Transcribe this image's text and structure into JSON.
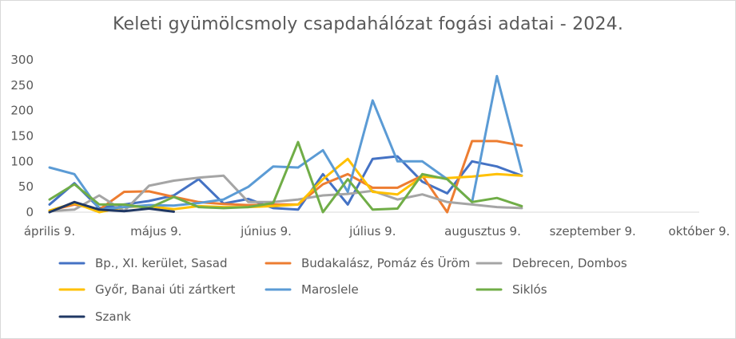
{
  "chart_data": {
    "type": "line",
    "title": "Keleti gyümölcsmoly csapdahálózat fogási adatai - 2024.",
    "ylim": [
      0,
      300
    ],
    "yticks": [
      0,
      50,
      100,
      150,
      200,
      250,
      300
    ],
    "xlim": [
      "2024-04-09",
      "2024-10-09"
    ],
    "xticks": [
      {
        "date": "2024-04-09",
        "label": "április 9."
      },
      {
        "date": "2024-05-09",
        "label": "május 9."
      },
      {
        "date": "2024-06-09",
        "label": "június 9."
      },
      {
        "date": "2024-07-09",
        "label": "július 9."
      },
      {
        "date": "2024-08-09",
        "label": "augusztus 9."
      },
      {
        "date": "2024-09-09",
        "label": "szeptember 9."
      },
      {
        "date": "2024-10-09",
        "label": "október 9."
      }
    ],
    "grid": false,
    "legend_position": "bottom",
    "series": [
      {
        "name": "Bp., XI. kerület, Sasad",
        "color": "#4472C4",
        "x": [
          "2024-04-09",
          "2024-04-16",
          "2024-04-23",
          "2024-04-30",
          "2024-05-07",
          "2024-05-14",
          "2024-05-21",
          "2024-05-28",
          "2024-06-04",
          "2024-06-11",
          "2024-06-18",
          "2024-06-25",
          "2024-07-02",
          "2024-07-09",
          "2024-07-16",
          "2024-07-23",
          "2024-07-30",
          "2024-08-06",
          "2024-08-13",
          "2024-08-20"
        ],
        "y": [
          15,
          57,
          8,
          15,
          22,
          33,
          65,
          17,
          26,
          8,
          5,
          75,
          15,
          105,
          110,
          60,
          37,
          100,
          90,
          72
        ]
      },
      {
        "name": "Budakalász, Pomáz és Üröm",
        "color": "#ED7D31",
        "x": [
          "2024-04-09",
          "2024-04-16",
          "2024-04-23",
          "2024-04-30",
          "2024-05-07",
          "2024-05-14",
          "2024-05-21",
          "2024-05-28",
          "2024-06-04",
          "2024-06-11",
          "2024-06-18",
          "2024-06-25",
          "2024-07-02",
          "2024-07-09",
          "2024-07-16",
          "2024-07-23",
          "2024-07-30",
          "2024-08-06",
          "2024-08-13",
          "2024-08-20"
        ],
        "y": [
          3,
          15,
          5,
          40,
          41,
          30,
          20,
          16,
          14,
          15,
          15,
          55,
          75,
          48,
          48,
          72,
          0,
          140,
          140,
          131
        ]
      },
      {
        "name": "Debrecen, Dombos",
        "color": "#A5A5A5",
        "x": [
          "2024-04-09",
          "2024-04-16",
          "2024-04-23",
          "2024-04-30",
          "2024-05-07",
          "2024-05-14",
          "2024-05-21",
          "2024-05-28",
          "2024-06-04",
          "2024-06-11",
          "2024-06-18",
          "2024-06-25",
          "2024-07-02",
          "2024-07-09",
          "2024-07-16",
          "2024-07-23",
          "2024-07-30",
          "2024-08-06",
          "2024-08-13",
          "2024-08-20"
        ],
        "y": [
          2,
          5,
          33,
          2,
          52,
          62,
          68,
          72,
          20,
          20,
          25,
          33,
          36,
          42,
          25,
          35,
          20,
          15,
          10,
          8
        ]
      },
      {
        "name": "Győr, Banai úti zártkert",
        "color": "#FFC000",
        "x": [
          "2024-04-09",
          "2024-04-16",
          "2024-04-23",
          "2024-04-30",
          "2024-05-07",
          "2024-05-14",
          "2024-05-21",
          "2024-05-28",
          "2024-06-04",
          "2024-06-11",
          "2024-06-18",
          "2024-06-25",
          "2024-07-02",
          "2024-07-09",
          "2024-07-16",
          "2024-07-23",
          "2024-07-30",
          "2024-08-06",
          "2024-08-13",
          "2024-08-20"
        ],
        "y": [
          3,
          18,
          0,
          10,
          12,
          6,
          12,
          10,
          10,
          12,
          15,
          65,
          105,
          40,
          35,
          70,
          67,
          70,
          75,
          72
        ]
      },
      {
        "name": "Maroslele",
        "color": "#5B9BD5",
        "x": [
          "2024-04-09",
          "2024-04-16",
          "2024-04-23",
          "2024-04-30",
          "2024-05-07",
          "2024-05-14",
          "2024-05-21",
          "2024-05-28",
          "2024-06-04",
          "2024-06-11",
          "2024-06-18",
          "2024-06-25",
          "2024-07-02",
          "2024-07-09",
          "2024-07-16",
          "2024-07-23",
          "2024-07-30",
          "2024-08-06",
          "2024-08-13",
          "2024-08-20"
        ],
        "y": [
          88,
          75,
          5,
          10,
          14,
          13,
          18,
          25,
          50,
          90,
          88,
          122,
          40,
          220,
          100,
          100,
          65,
          20,
          268,
          80
        ]
      },
      {
        "name": "Siklós",
        "color": "#70AD47",
        "x": [
          "2024-04-09",
          "2024-04-16",
          "2024-04-23",
          "2024-04-30",
          "2024-05-07",
          "2024-05-14",
          "2024-05-21",
          "2024-05-28",
          "2024-06-04",
          "2024-06-11",
          "2024-06-18",
          "2024-06-25",
          "2024-07-02",
          "2024-07-09",
          "2024-07-16",
          "2024-07-23",
          "2024-07-30",
          "2024-08-06",
          "2024-08-13",
          "2024-08-20"
        ],
        "y": [
          25,
          55,
          15,
          15,
          8,
          30,
          10,
          8,
          10,
          18,
          138,
          0,
          65,
          5,
          7,
          75,
          65,
          20,
          28,
          12
        ]
      },
      {
        "name": "Szank",
        "color": "#203864",
        "x": [
          "2024-04-09",
          "2024-04-16",
          "2024-04-23",
          "2024-04-30",
          "2024-05-07",
          "2024-05-14"
        ],
        "y": [
          0,
          20,
          5,
          2,
          7,
          1
        ]
      }
    ]
  }
}
